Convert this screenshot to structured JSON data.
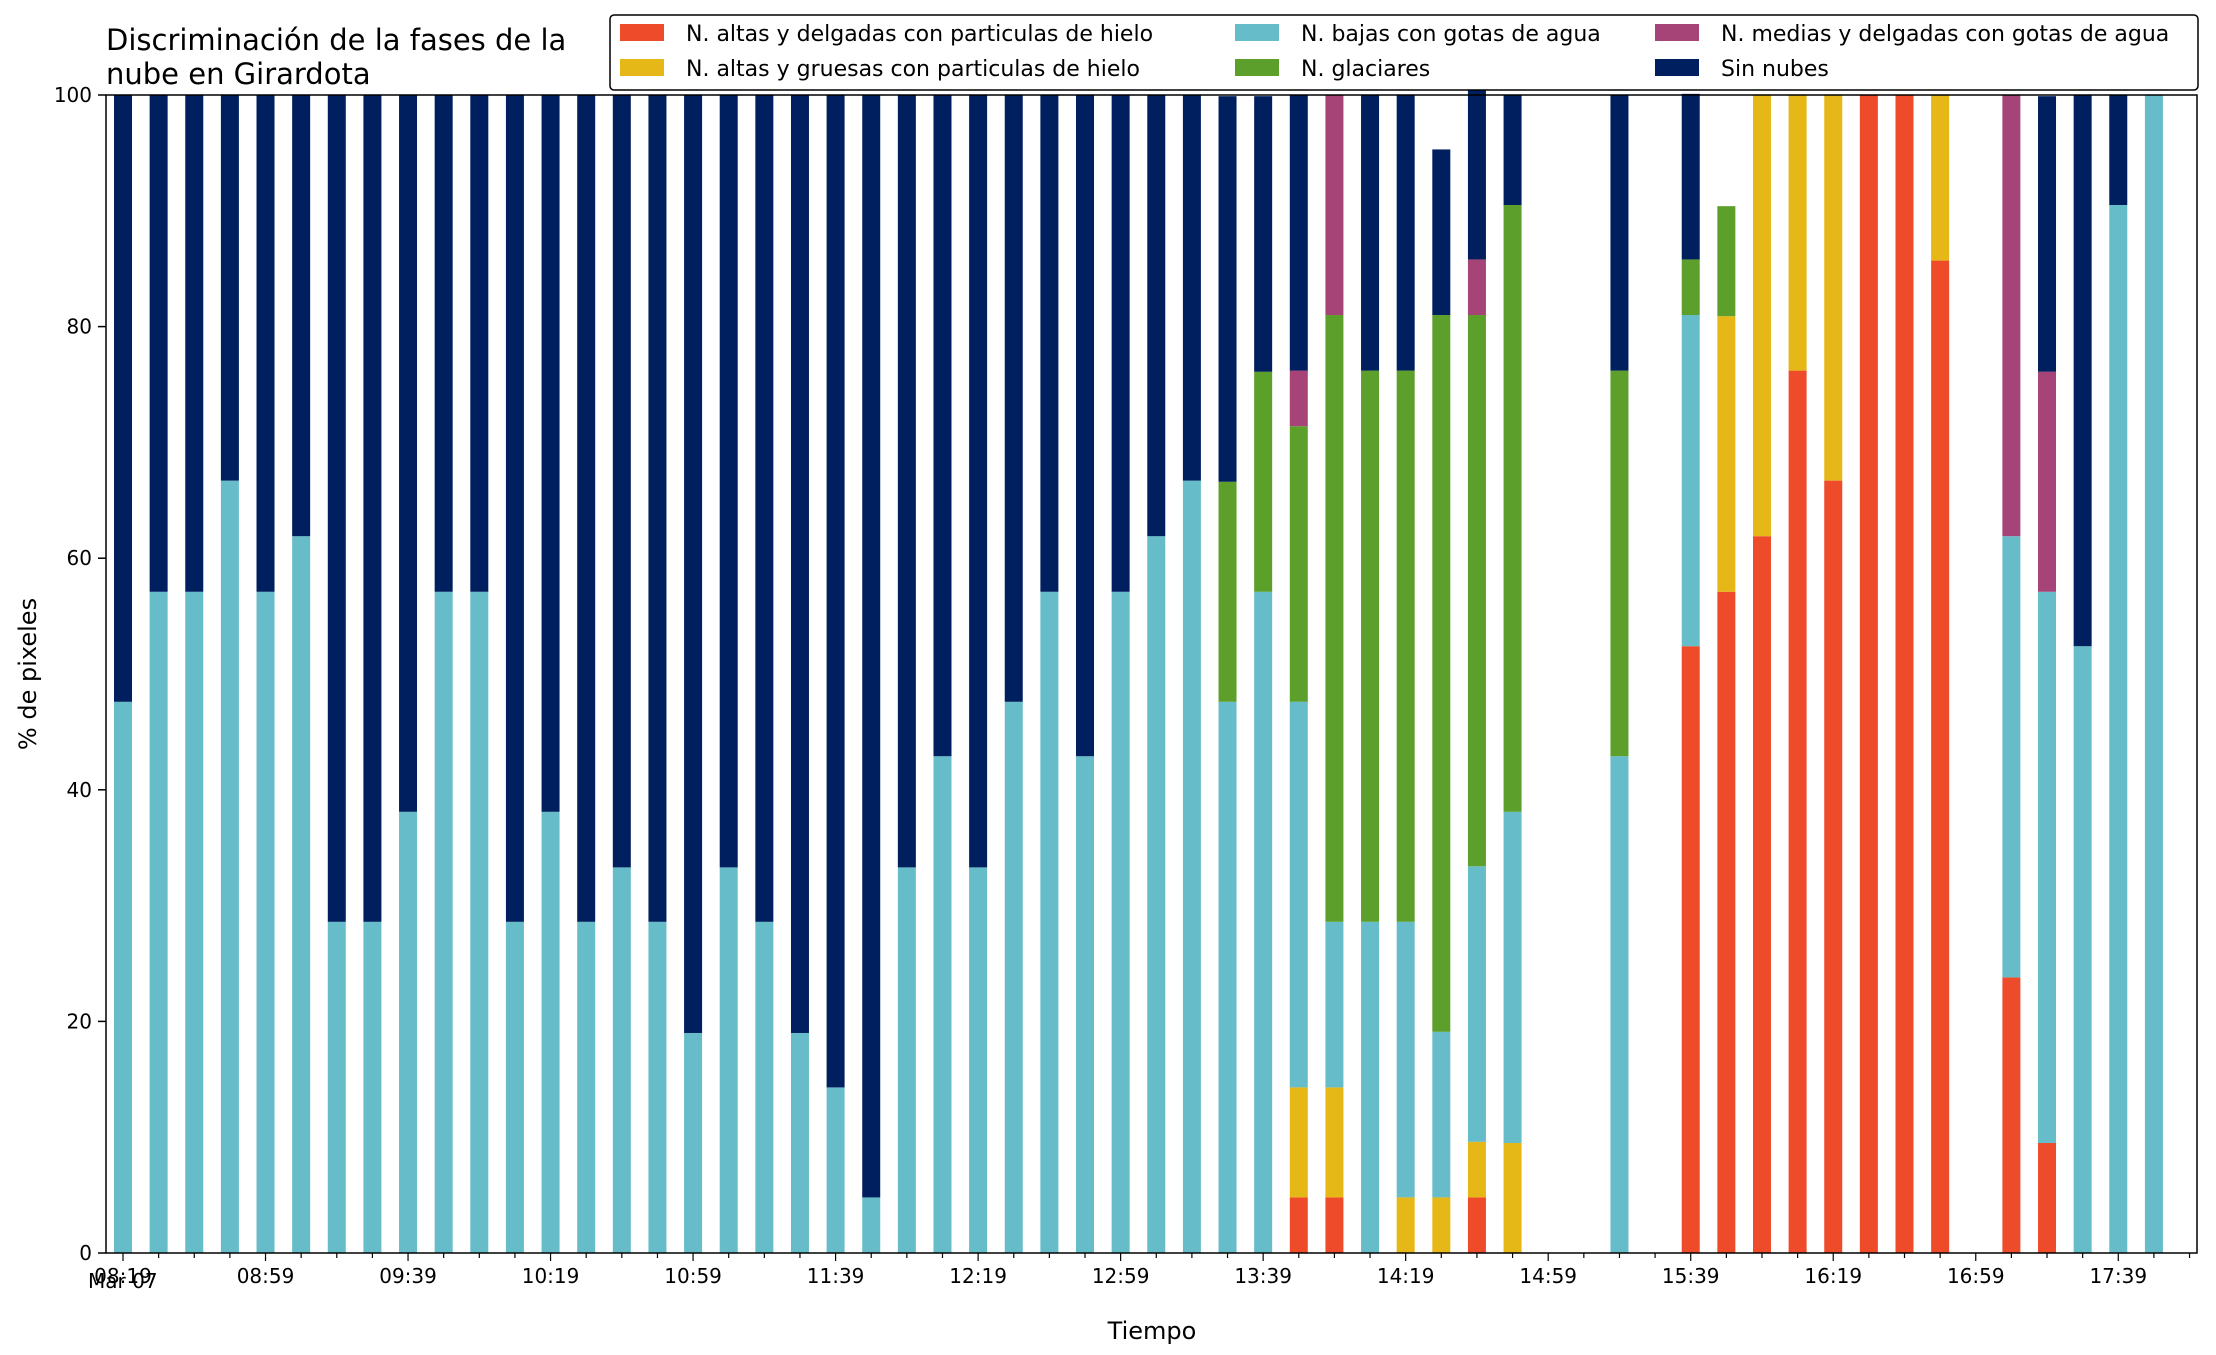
{
  "chart_data": {
    "type": "bar",
    "stacked": true,
    "title_lines": [
      "Discriminación de la fases de la",
      "nube en Girardota"
    ],
    "xlabel": "Tiempo",
    "ylabel": "% de pixeles",
    "ylim": [
      0,
      100
    ],
    "yticks": [
      0,
      20,
      40,
      60,
      80,
      100
    ],
    "x_tick_labels": [
      "08:19",
      "08:59",
      "09:39",
      "10:19",
      "10:59",
      "11:39",
      "12:19",
      "12:59",
      "13:39",
      "14:19",
      "14:59",
      "15:39",
      "16:19",
      "16:59",
      "17:39"
    ],
    "x_date_label": "Mar 07",
    "x_interval_minutes": 10,
    "legend_position": "top-right",
    "categories": [
      "08:19",
      "08:29",
      "08:39",
      "08:49",
      "08:59",
      "09:09",
      "09:19",
      "09:29",
      "09:39",
      "09:49",
      "09:59",
      "10:09",
      "10:19",
      "10:29",
      "10:39",
      "10:49",
      "10:59",
      "11:09",
      "11:19",
      "11:29",
      "11:39",
      "11:49",
      "11:59",
      "12:09",
      "12:19",
      "12:29",
      "12:39",
      "12:49",
      "12:59",
      "13:09",
      "13:19",
      "13:29",
      "13:39",
      "13:49",
      "13:59",
      "14:09",
      "14:19",
      "14:29",
      "14:39",
      "14:49",
      "14:59",
      "15:09",
      "15:19",
      "15:29",
      "15:39",
      "15:49",
      "15:59",
      "16:09",
      "16:19",
      "16:29",
      "16:39",
      "16:49",
      "16:59",
      "17:09",
      "17:19",
      "17:29",
      "17:39",
      "17:49"
    ],
    "series": [
      {
        "name": "N. altas y delgadas con particulas de hielo",
        "color": "#ee4b2b",
        "values": [
          0,
          0,
          0,
          0,
          0,
          0,
          0,
          0,
          0,
          0,
          0,
          0,
          0,
          0,
          0,
          0,
          0,
          0,
          0,
          0,
          0,
          0,
          0,
          0,
          0,
          0,
          0,
          0,
          0,
          0,
          0,
          0,
          0,
          4.8,
          4.8,
          0,
          0,
          0,
          4.8,
          0,
          0,
          0,
          0,
          0,
          52.4,
          57.1,
          61.9,
          76.2,
          66.7,
          100,
          100,
          85.7,
          0,
          23.8,
          9.5,
          0,
          0,
          0
        ]
      },
      {
        "name": "N. altas y gruesas con particulas de hielo",
        "color": "#e5b717",
        "values": [
          0,
          0,
          0,
          0,
          0,
          0,
          0,
          0,
          0,
          0,
          0,
          0,
          0,
          0,
          0,
          0,
          0,
          0,
          0,
          0,
          0,
          0,
          0,
          0,
          0,
          0,
          0,
          0,
          0,
          0,
          0,
          0,
          0,
          9.5,
          9.5,
          0,
          4.8,
          4.8,
          4.8,
          9.5,
          0,
          0,
          0,
          0,
          0,
          23.8,
          38.1,
          23.8,
          33.3,
          0,
          0,
          14.3,
          0,
          0,
          0,
          0,
          0,
          0
        ]
      },
      {
        "name": "N. bajas con gotas de agua",
        "color": "#66bdc9",
        "values": [
          47.6,
          57.1,
          57.1,
          66.7,
          57.1,
          61.9,
          28.6,
          28.6,
          38.1,
          57.1,
          57.1,
          28.6,
          38.1,
          28.6,
          33.3,
          28.6,
          19.0,
          33.3,
          28.6,
          19.0,
          14.3,
          4.8,
          33.3,
          42.9,
          33.3,
          47.6,
          57.1,
          42.9,
          57.1,
          61.9,
          66.7,
          47.6,
          57.1,
          33.3,
          14.3,
          28.6,
          23.8,
          14.3,
          23.8,
          28.6,
          0,
          0,
          42.9,
          0,
          28.6,
          0,
          0,
          0,
          0,
          0,
          0,
          0,
          0,
          38.1,
          47.6,
          52.4,
          90.5,
          100
        ]
      },
      {
        "name": "N. glaciares",
        "color": "#5c9f2b",
        "values": [
          0,
          0,
          0,
          0,
          0,
          0,
          0,
          0,
          0,
          0,
          0,
          0,
          0,
          0,
          0,
          0,
          0,
          0,
          0,
          0,
          0,
          0,
          0,
          0,
          0,
          0,
          0,
          0,
          0,
          0,
          0,
          19.0,
          19.0,
          23.8,
          52.4,
          47.6,
          47.6,
          61.9,
          47.6,
          52.4,
          0,
          0,
          33.3,
          0,
          4.8,
          9.5,
          0,
          0,
          0,
          0,
          0,
          0,
          0,
          0,
          0,
          0,
          0,
          0
        ]
      },
      {
        "name": "N. medias y delgadas con gotas de agua",
        "color": "#a64477",
        "values": [
          0,
          0,
          0,
          0,
          0,
          0,
          0,
          0,
          0,
          0,
          0,
          0,
          0,
          0,
          0,
          0,
          0,
          0,
          0,
          0,
          0,
          0,
          0,
          0,
          0,
          0,
          0,
          0,
          0,
          0,
          0,
          0,
          0,
          4.8,
          19.0,
          0,
          0,
          0,
          4.8,
          0,
          0,
          0,
          0,
          0,
          0,
          0,
          0,
          0,
          0,
          0,
          0,
          0,
          0,
          38.1,
          19.0,
          0,
          0,
          0
        ]
      },
      {
        "name": "Sin nubes",
        "color": "#001f5e",
        "values": [
          52.4,
          42.9,
          42.9,
          33.3,
          42.9,
          38.1,
          71.4,
          71.4,
          61.9,
          42.9,
          42.9,
          71.4,
          61.9,
          71.4,
          66.7,
          71.4,
          81.0,
          66.7,
          71.4,
          81.0,
          85.7,
          95.2,
          66.7,
          57.1,
          66.7,
          52.4,
          42.9,
          57.1,
          42.9,
          38.1,
          33.3,
          33.3,
          23.8,
          23.8,
          0,
          23.8,
          23.8,
          14.3,
          19.0,
          9.5,
          0,
          0,
          23.8,
          0,
          14.3,
          0,
          0,
          0,
          0,
          0,
          0,
          0,
          0,
          0,
          23.8,
          47.6,
          9.5,
          0
        ]
      }
    ]
  }
}
